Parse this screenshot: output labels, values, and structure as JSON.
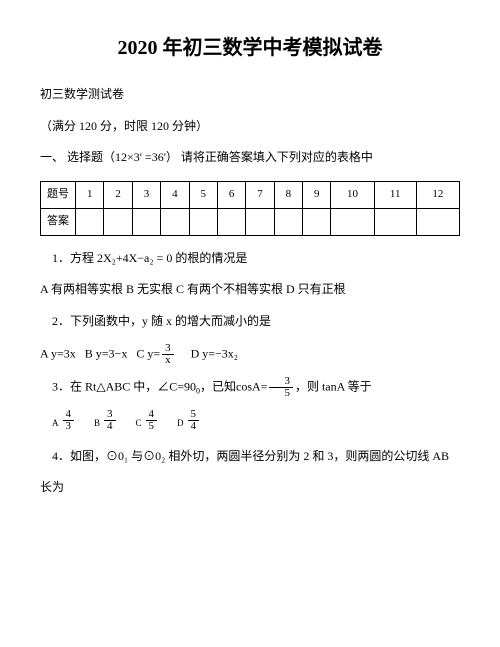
{
  "title": "2020 年初三数学中考模拟试卷",
  "subtitle": "初三数学测试卷",
  "meta": "（满分 120 分，时限 120 分钟）",
  "section1": "一、 选择题（12×3' =36'）  请将正确答案填入下列对应的表格中",
  "table": {
    "row1label": "题号",
    "row2label": "答案",
    "cols": [
      "1",
      "2",
      "3",
      "4",
      "5",
      "6",
      "7",
      "8",
      "9",
      "10",
      "11",
      "12"
    ]
  },
  "q1": "1．方程 2X₂+4X−a₂ = 0 的根的情况是",
  "q1opts": "A 有两相等实根  B  无实根  C 有两个不相等实根  D 只有正根",
  "q2": "2．下列函数中，y 随 x 的增大而减小的是",
  "q2A": "A y=3x",
  "q2B": "B y=3−x",
  "q2C_pre": "C y=",
  "q2D": "D y=−3x₂",
  "q3_pre": "3．在 Rt△ABC 中，∠C=90",
  "q3_mid": "，已知cosA=",
  "q3_post": "，则 tanA 等于",
  "q3A": "A",
  "q3B": "B",
  "q3C": "C",
  "q3D": "D",
  "q4a": "4．如图，⊙0₁ 与⊙0₂ 相外切，两圆半径分别为 2 和 3，则两圆的公切线 AB",
  "q4b": "长为",
  "frac": {
    "three": "3",
    "x": "x",
    "five": "5",
    "four": "4"
  }
}
